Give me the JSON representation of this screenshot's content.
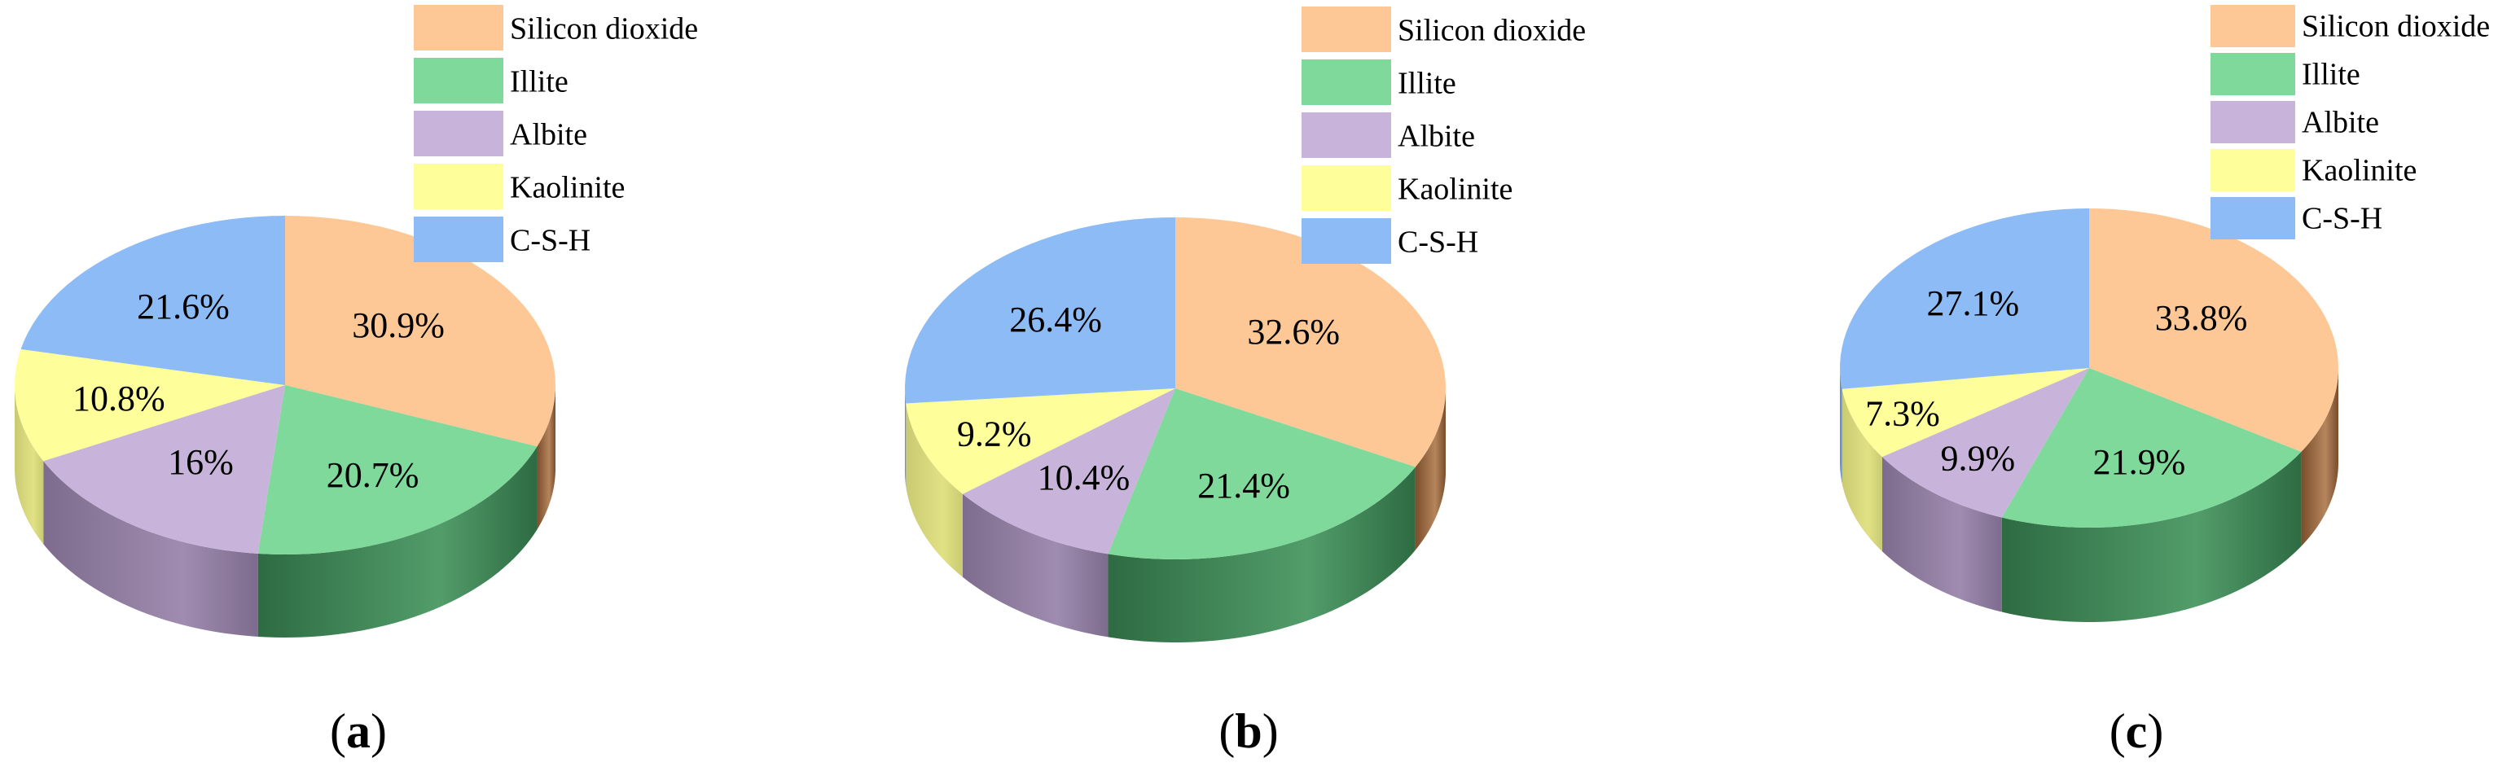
{
  "chart_data": [
    {
      "type": "pie",
      "panel_label": "a",
      "categories": [
        "Silicon dioxide",
        "Illite",
        "Albite",
        "Kaolinite",
        "C-S-H"
      ],
      "values": [
        30.9,
        20.7,
        16,
        10.8,
        21.6
      ],
      "data_labels": [
        "30.9%",
        "20.7%",
        "16%",
        "10.8%",
        "21.6%"
      ],
      "style": "3d",
      "legend": "top-right"
    },
    {
      "type": "pie",
      "panel_label": "b",
      "categories": [
        "Silicon dioxide",
        "Illite",
        "Albite",
        "Kaolinite",
        "C-S-H"
      ],
      "values": [
        32.6,
        21.4,
        10.4,
        9.2,
        26.4
      ],
      "data_labels": [
        "32.6%",
        "21.4%",
        "10.4%",
        "9.2%",
        "26.4%"
      ],
      "style": "3d",
      "legend": "top-right"
    },
    {
      "type": "pie",
      "panel_label": "c",
      "categories": [
        "Silicon dioxide",
        "Illite",
        "Albite",
        "Kaolinite",
        "C-S-H"
      ],
      "values": [
        33.8,
        21.9,
        9.9,
        7.3,
        27.1
      ],
      "data_labels": [
        "33.8%",
        "21.9%",
        "9.9%",
        "7.3%",
        "27.1%"
      ],
      "style": "3d",
      "legend": "top-right"
    }
  ],
  "colors": {
    "Silicon dioxide": "#FDC896",
    "Illite": "#7ED99A",
    "Albite": "#C8B4DA",
    "Kaolinite": "#FEFE9A",
    "C-S-H": "#8CBBF5"
  },
  "side_colors": {
    "Silicon dioxide": "#7A4E2C",
    "Illite": "#2E6B42",
    "Albite": "#7E6C8E",
    "Kaolinite": "#CACA72",
    "C-S-H": "#5A86C0"
  }
}
